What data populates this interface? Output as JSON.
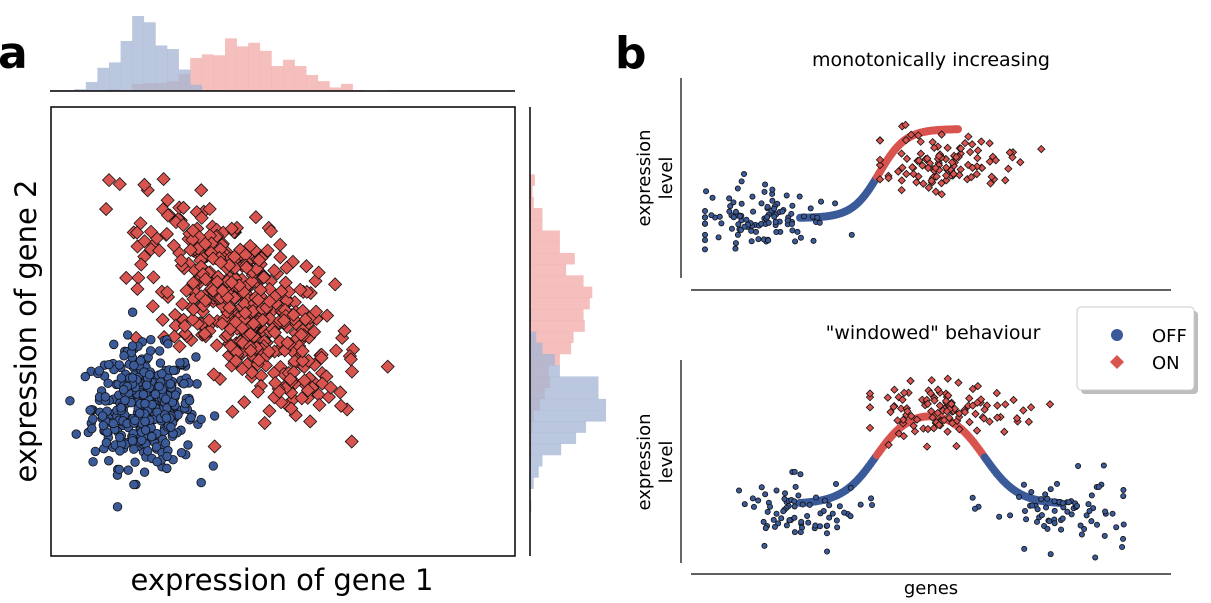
{
  "panel_a": {
    "letter": "a",
    "xlabel": "expression of gene 1",
    "ylabel": "expression of gene 2"
  },
  "panel_b": {
    "letter": "b",
    "top_title": "monotonically increasing",
    "bottom_title": "\"windowed\" behaviour",
    "ylabel_line1": "expression",
    "ylabel_line2": "level",
    "xlabel": "genes"
  },
  "legend": {
    "off_label": "OFF",
    "on_label": "ON"
  },
  "colors": {
    "off": "#3b5a9a",
    "on": "#d9534f",
    "off_hist": "#a3b4d3",
    "on_hist": "#f0a9a6"
  },
  "chart_data": [
    {
      "type": "scatter",
      "panel": "a",
      "xlabel": "expression of gene 1",
      "ylabel": "expression of gene 2",
      "series": [
        {
          "name": "OFF",
          "marker": "circle",
          "n": 420,
          "center": [
            2.0,
            3.3
          ],
          "spread": [
            0.55,
            0.65
          ],
          "shape": "gaussian cluster"
        },
        {
          "name": "ON",
          "marker": "diamond",
          "n": 520,
          "center": [
            4.1,
            5.6
          ],
          "spread": [
            1.0,
            1.1
          ],
          "correlation": -0.6,
          "shape": "elongated cluster"
        }
      ],
      "marginal_histograms": true,
      "grid": false
    },
    {
      "type": "scatter",
      "panel": "b-top",
      "title": "monotonically increasing",
      "ylabel": "expression level",
      "curve": "sigmoid (low to high)",
      "series": [
        {
          "name": "OFF",
          "marker": "circle",
          "n": 110
        },
        {
          "name": "ON",
          "marker": "diamond",
          "n": 110
        }
      ]
    },
    {
      "type": "scatter",
      "panel": "b-bottom",
      "title": "\"windowed\" behaviour",
      "ylabel": "expression level",
      "xlabel": "genes",
      "curve": "bump (low, high, low)",
      "series": [
        {
          "name": "OFF",
          "marker": "circle",
          "n": 150
        },
        {
          "name": "ON",
          "marker": "diamond",
          "n": 110
        }
      ]
    }
  ]
}
